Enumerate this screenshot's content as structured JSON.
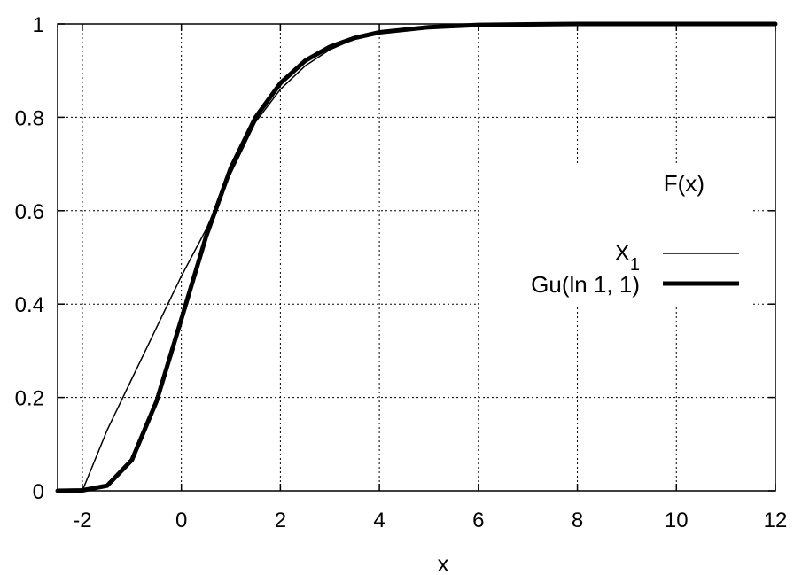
{
  "chart_data": {
    "type": "line",
    "title": "",
    "xlabel": "x",
    "ylabel": "F(x)",
    "xlim": [
      -2.5,
      12
    ],
    "ylim": [
      0,
      1
    ],
    "xticks": [
      -2,
      0,
      2,
      4,
      6,
      8,
      10,
      12
    ],
    "yticks": [
      0,
      0.2,
      0.4,
      0.6,
      0.8,
      1
    ],
    "xtick_labels": [
      "-2",
      "0",
      "2",
      "4",
      "6",
      "8",
      "10",
      "12"
    ],
    "ytick_labels": [
      "0",
      "0.2",
      "0.4",
      "0.6",
      "0.8",
      "1"
    ],
    "grid": true,
    "legend_position": "right",
    "legend_title": "F(x)",
    "series": [
      {
        "name": "X",
        "name_subscript": "1",
        "style": "thin",
        "color": "#000000",
        "x": [
          -2.5,
          -2.0,
          -1.5,
          -1.0,
          -0.5,
          0.0,
          0.5,
          1.0,
          1.5,
          2.0,
          2.5,
          3.0,
          3.5,
          4.0,
          5.0,
          6.0,
          8.0,
          10.0,
          12.0
        ],
        "y": [
          0.0,
          0.0,
          0.13,
          0.24,
          0.35,
          0.46,
          0.56,
          0.68,
          0.79,
          0.86,
          0.91,
          0.945,
          0.968,
          0.982,
          0.993,
          0.998,
          1.0,
          1.0,
          1.0
        ]
      },
      {
        "name": "Gu(ln 1, 1)",
        "style": "thick",
        "color": "#000000",
        "x": [
          -2.5,
          -2.0,
          -1.5,
          -1.0,
          -0.5,
          0.0,
          0.5,
          1.0,
          1.5,
          2.0,
          2.5,
          3.0,
          3.5,
          4.0,
          5.0,
          6.0,
          7.0,
          8.0,
          10.0,
          12.0
        ],
        "y": [
          0.0,
          0.001,
          0.011,
          0.066,
          0.192,
          0.368,
          0.545,
          0.692,
          0.8,
          0.873,
          0.921,
          0.951,
          0.97,
          0.982,
          0.993,
          0.998,
          0.999,
          1.0,
          1.0,
          1.0
        ]
      }
    ]
  }
}
